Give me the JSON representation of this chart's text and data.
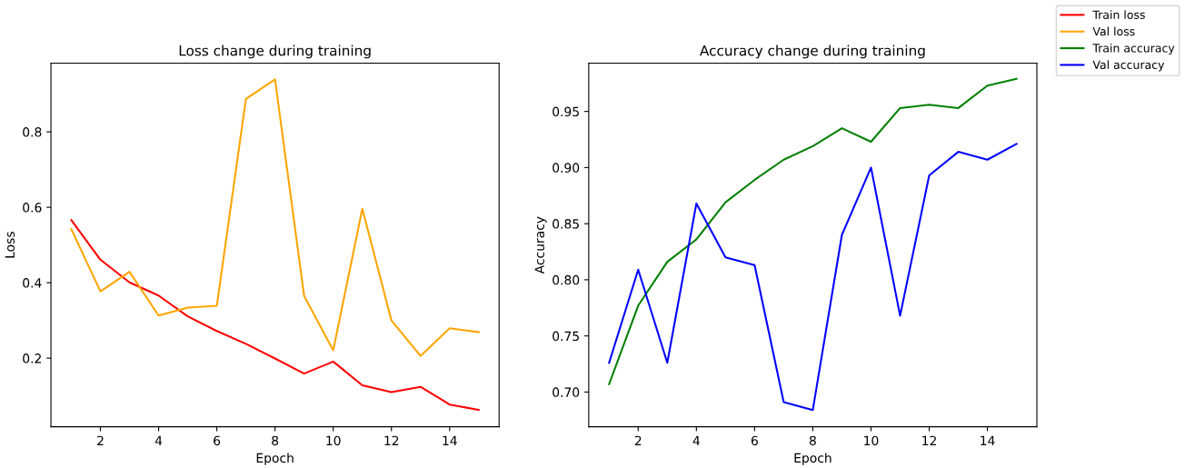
{
  "chart_data": [
    {
      "type": "line",
      "title": "Loss change during training",
      "xlabel": "Epoch",
      "ylabel": "Loss",
      "x": [
        1,
        2,
        3,
        4,
        5,
        6,
        7,
        8,
        9,
        10,
        11,
        12,
        13,
        14,
        15
      ],
      "xlim": [
        0.3,
        15.7
      ],
      "xticks": [
        2,
        4,
        6,
        8,
        10,
        12,
        14
      ],
      "ylim": [
        0.018,
        0.982
      ],
      "yticks": [
        0.2,
        0.4,
        0.6,
        0.8
      ],
      "grid": false,
      "legend": "top right",
      "series": [
        {
          "name": "Train loss",
          "color": "#ff0000",
          "values": [
            0.566,
            0.461,
            0.401,
            0.366,
            0.311,
            0.272,
            0.238,
            0.199,
            0.159,
            0.191,
            0.128,
            0.11,
            0.124,
            0.077,
            0.063
          ]
        },
        {
          "name": "Val loss",
          "color": "#ffa500",
          "values": [
            0.542,
            0.377,
            0.429,
            0.313,
            0.334,
            0.339,
            0.887,
            0.939,
            0.365,
            0.221,
            0.596,
            0.3,
            0.206,
            0.279,
            0.269
          ]
        }
      ]
    },
    {
      "type": "line",
      "title": "Accuracy change during training",
      "xlabel": "Epoch",
      "ylabel": "Accuracy",
      "x": [
        1,
        2,
        3,
        4,
        5,
        6,
        7,
        8,
        9,
        10,
        11,
        12,
        13,
        14,
        15
      ],
      "xlim": [
        0.3,
        15.7
      ],
      "xticks": [
        2,
        4,
        6,
        8,
        10,
        12,
        14
      ],
      "ylim": [
        0.669,
        0.993
      ],
      "yticks": [
        {
          "value": 0.7,
          "label": "0.70"
        },
        0.75,
        {
          "value": 0.8,
          "label": "0.80"
        },
        0.85,
        {
          "value": 0.9,
          "label": "0.90"
        },
        0.95
      ],
      "grid": false,
      "legend": "top right",
      "series": [
        {
          "name": "Train accuracy",
          "color": "#008000",
          "values": [
            0.707,
            0.777,
            0.816,
            0.836,
            0.869,
            0.889,
            0.907,
            0.919,
            0.935,
            0.923,
            0.953,
            0.956,
            0.953,
            0.973,
            0.979
          ]
        },
        {
          "name": "Val accuracy",
          "color": "#0000ff",
          "values": [
            0.726,
            0.809,
            0.726,
            0.868,
            0.82,
            0.813,
            0.691,
            0.684,
            0.84,
            0.9,
            0.768,
            0.893,
            0.914,
            0.907,
            0.921
          ]
        }
      ]
    }
  ]
}
